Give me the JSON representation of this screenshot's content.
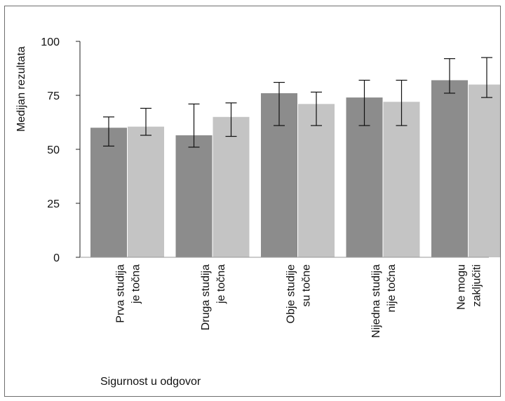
{
  "chart_data": {
    "type": "bar",
    "ylabel": "Medijan rezultata",
    "xlabel": "Sigurnost u odgovor",
    "ylim": [
      0,
      100
    ],
    "yticks": [
      0,
      25,
      50,
      75,
      100
    ],
    "grid": false,
    "categories": [
      [
        "Prva studija",
        "je točna"
      ],
      [
        "Druga studija",
        "je točna"
      ],
      [
        "Obje studije",
        "su točne"
      ],
      [
        "Nijedna studija",
        "nije točna"
      ],
      [
        "Ne mogu",
        "zaključiti"
      ]
    ],
    "series": [
      {
        "color": "#8c8c8c",
        "values": [
          60,
          56.5,
          76,
          74,
          82
        ],
        "error_low": [
          51.5,
          51,
          61,
          61,
          76
        ],
        "error_high": [
          65,
          71,
          81,
          82,
          92
        ]
      },
      {
        "color": "#c4c4c4",
        "values": [
          60.5,
          65,
          71,
          72,
          80
        ],
        "error_low": [
          56.5,
          56,
          61,
          61,
          74
        ],
        "error_high": [
          69,
          71.5,
          76.5,
          82,
          92.5
        ]
      }
    ]
  }
}
